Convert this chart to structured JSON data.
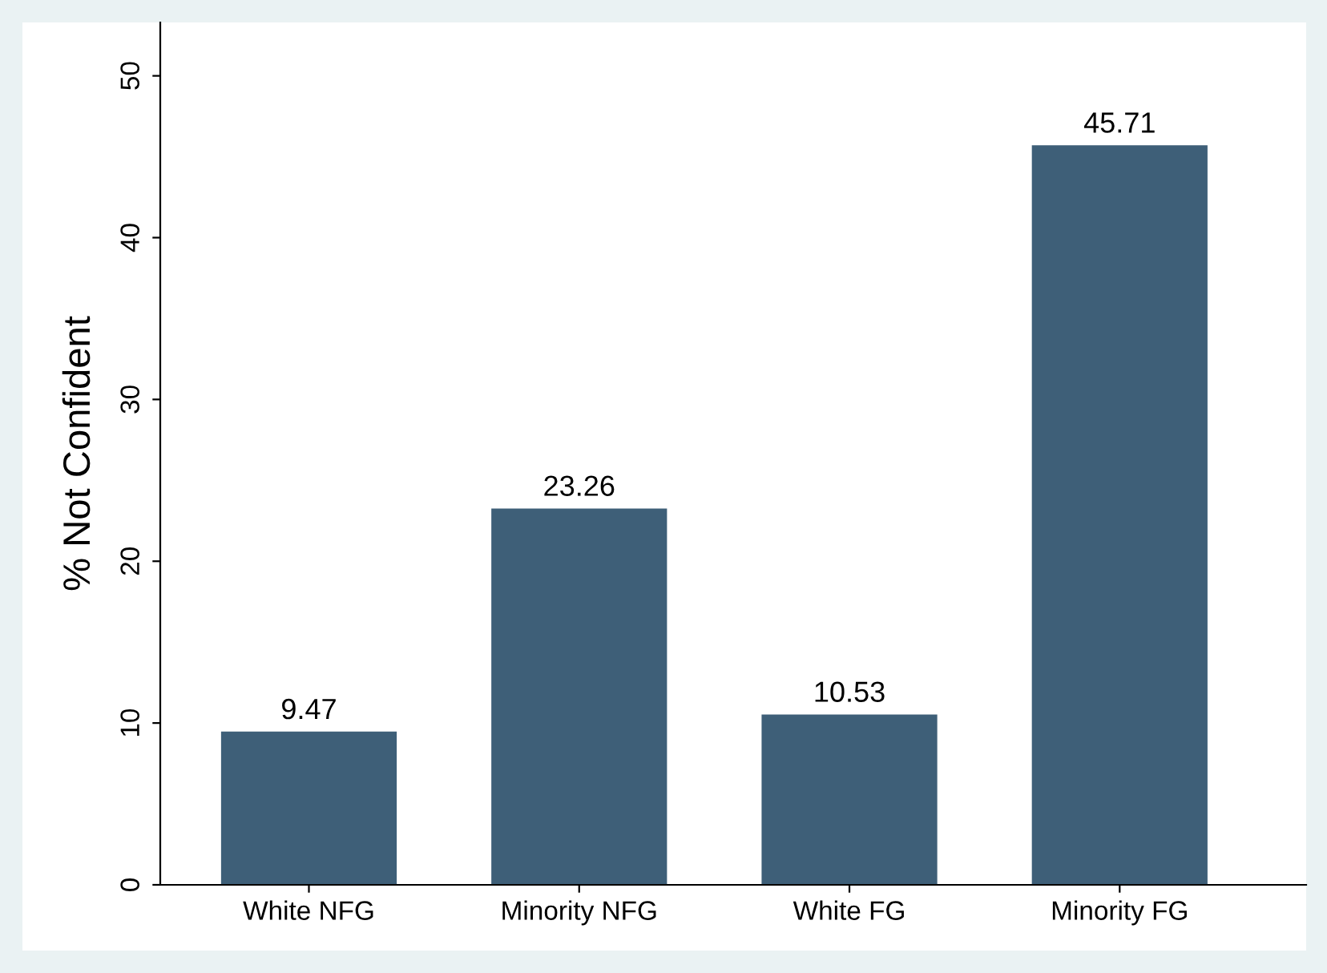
{
  "chart_data": {
    "type": "bar",
    "ylabel": "% Not Confident",
    "categories": [
      "White NFG",
      "Minority NFG",
      "White FG",
      "Minority FG"
    ],
    "values": [
      9.47,
      23.26,
      10.53,
      45.71
    ],
    "color": "#3e5f78",
    "ylim": [
      0,
      53.3
    ],
    "yticks": [
      0,
      10,
      20,
      30,
      40,
      50
    ],
    "data_labels": true,
    "grid": false,
    "legend": false
  }
}
